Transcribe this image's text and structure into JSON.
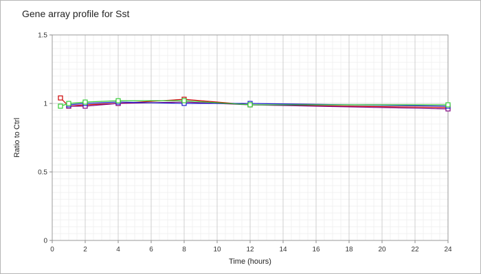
{
  "chart_data": {
    "type": "line",
    "title": "Gene array profile for Sst",
    "xlabel": "Time (hours)",
    "ylabel": "Ratio to Ctrl",
    "xlim": [
      0,
      24
    ],
    "ylim": [
      0,
      1.5
    ],
    "x_ticks": [
      "0",
      "2",
      "4",
      "6",
      "8",
      "10",
      "12",
      "14",
      "16",
      "18",
      "20",
      "22",
      "24"
    ],
    "y_ticks": [
      "0",
      "0.5",
      "1",
      "1.5"
    ],
    "grid": true,
    "legend": "none",
    "series": [
      {
        "color": "#cc0000",
        "marker": "square",
        "x": [
          0.5,
          1,
          2,
          4,
          8,
          12,
          24
        ],
        "y": [
          1.04,
          0.98,
          0.99,
          1.0,
          1.03,
          0.99,
          0.97
        ]
      },
      {
        "color": "#800080",
        "marker": "square",
        "x": [
          1,
          2,
          4,
          8,
          12,
          24
        ],
        "y": [
          0.98,
          0.98,
          1.0,
          1.01,
          0.99,
          0.96
        ]
      },
      {
        "color": "#1c1ccc",
        "marker": "square",
        "x": [
          1,
          2,
          4,
          8,
          12,
          24
        ],
        "y": [
          0.99,
          1.0,
          1.01,
          1.0,
          1.0,
          0.98
        ]
      },
      {
        "color": "#33cc33",
        "marker": "square",
        "x": [
          0.5,
          1,
          2,
          4,
          8,
          12,
          24
        ],
        "y": [
          0.98,
          1.0,
          1.01,
          1.02,
          1.02,
          0.99,
          0.99
        ]
      }
    ]
  }
}
